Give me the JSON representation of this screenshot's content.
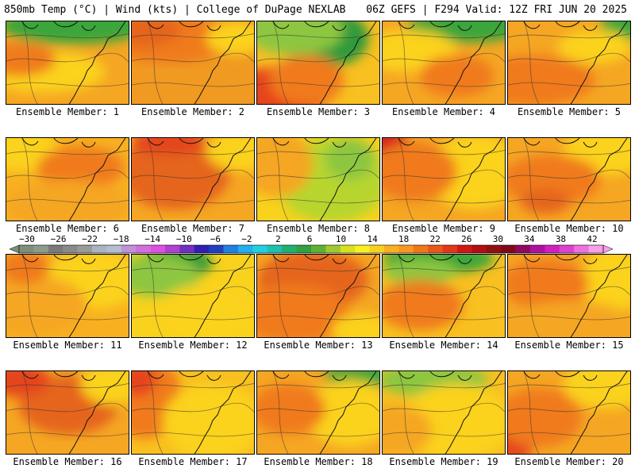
{
  "header": {
    "left": "850mb Temp (°C) | Wind (kts) | College of DuPage NEXLAB",
    "right": "06Z GEFS | F294 Valid: 12Z FRI JUN 20 2025"
  },
  "caption_prefix": "Ensemble Member:",
  "members": [
    {
      "label": "Ensemble Member: 1",
      "base": "#f5a623",
      "blobs": [
        [
          "#3aa63a",
          0.55,
          0.05,
          0.6,
          0.22
        ],
        [
          "#fbd21d",
          0.3,
          0.6,
          0.5,
          0.25
        ],
        [
          "#f07a1a",
          0.1,
          0.45,
          0.3,
          0.2
        ]
      ]
    },
    {
      "label": "Ensemble Member: 2",
      "base": "#f09a22",
      "blobs": [
        [
          "#f07a1a",
          0.3,
          0.2,
          0.5,
          0.3
        ],
        [
          "#fbd21d",
          0.85,
          0.2,
          0.25,
          0.2
        ],
        [
          "#e5651a",
          0.1,
          0.1,
          0.3,
          0.2
        ]
      ]
    },
    {
      "label": "Ensemble Member: 3",
      "base": "#f8c020",
      "blobs": [
        [
          "#2f9a3a",
          0.55,
          0.2,
          0.35,
          0.35
        ],
        [
          "#8dc63f",
          0.3,
          0.1,
          0.4,
          0.3
        ],
        [
          "#e5441a",
          0.15,
          0.85,
          0.45,
          0.3
        ],
        [
          "#f07a1a",
          0.4,
          0.7,
          0.3,
          0.3
        ]
      ]
    },
    {
      "label": "Ensemble Member: 4",
      "base": "#f5a623",
      "blobs": [
        [
          "#3aa63a",
          0.7,
          0.05,
          0.5,
          0.2
        ],
        [
          "#fbd21d",
          0.2,
          0.35,
          0.4,
          0.25
        ],
        [
          "#f07a1a",
          0.6,
          0.65,
          0.3,
          0.25
        ]
      ]
    },
    {
      "label": "Ensemble Member: 5",
      "base": "#f5a623",
      "blobs": [
        [
          "#3aa63a",
          0.95,
          0.05,
          0.2,
          0.2
        ],
        [
          "#f07a1a",
          0.2,
          0.7,
          0.5,
          0.3
        ],
        [
          "#fbd21d",
          0.7,
          0.3,
          0.3,
          0.2
        ]
      ]
    },
    {
      "label": "Ensemble Member: 6",
      "base": "#f8b021",
      "blobs": [
        [
          "#fbd21d",
          0.1,
          0.1,
          0.3,
          0.3
        ],
        [
          "#f07a1a",
          0.6,
          0.35,
          0.35,
          0.25
        ],
        [
          "#f5a623",
          0.5,
          0.8,
          0.5,
          0.3
        ]
      ]
    },
    {
      "label": "Ensemble Member: 7",
      "base": "#f5a623",
      "blobs": [
        [
          "#e5651a",
          0.35,
          0.4,
          0.45,
          0.45
        ],
        [
          "#e5441a",
          0.3,
          0.05,
          0.3,
          0.15
        ],
        [
          "#fbd21d",
          0.9,
          0.15,
          0.3,
          0.25
        ]
      ]
    },
    {
      "label": "Ensemble Member: 8",
      "base": "#f8d21d",
      "blobs": [
        [
          "#b7d52f",
          0.6,
          0.5,
          0.45,
          0.5
        ],
        [
          "#f5a623",
          0.15,
          0.3,
          0.3,
          0.4
        ],
        [
          "#8dc63f",
          0.75,
          0.25,
          0.2,
          0.25
        ]
      ]
    },
    {
      "label": "Ensemble Member: 9",
      "base": "#f5a623",
      "blobs": [
        [
          "#d41f1a",
          0.05,
          0.05,
          0.15,
          0.15
        ],
        [
          "#fbd21d",
          0.75,
          0.4,
          0.4,
          0.45
        ],
        [
          "#f07a1a",
          0.25,
          0.4,
          0.35,
          0.35
        ]
      ]
    },
    {
      "label": "Ensemble Member: 10",
      "base": "#f5a623",
      "blobs": [
        [
          "#fbd21d",
          0.8,
          0.15,
          0.35,
          0.3
        ],
        [
          "#f07a1a",
          0.35,
          0.5,
          0.4,
          0.3
        ],
        [
          "#e5651a",
          0.3,
          0.75,
          0.2,
          0.15
        ]
      ]
    },
    {
      "label": "Ensemble Member: 11",
      "base": "#f8b021",
      "blobs": [
        [
          "#fbd21d",
          0.7,
          0.3,
          0.4,
          0.35
        ],
        [
          "#f5a623",
          0.2,
          0.6,
          0.45,
          0.35
        ],
        [
          "#f07a1a",
          0.15,
          0.15,
          0.2,
          0.2
        ]
      ]
    },
    {
      "label": "Ensemble Member: 12",
      "base": "#f8d21d",
      "blobs": [
        [
          "#2f9a3a",
          0.35,
          0.1,
          0.3,
          0.2
        ],
        [
          "#8dc63f",
          0.2,
          0.25,
          0.35,
          0.25
        ],
        [
          "#fbd21d",
          0.6,
          0.7,
          0.4,
          0.35
        ]
      ]
    },
    {
      "label": "Ensemble Member: 13",
      "base": "#f5a623",
      "blobs": [
        [
          "#e5651a",
          0.45,
          0.3,
          0.45,
          0.35
        ],
        [
          "#f07a1a",
          0.3,
          0.7,
          0.45,
          0.35
        ],
        [
          "#fbd21d",
          0.85,
          0.9,
          0.25,
          0.2
        ]
      ]
    },
    {
      "label": "Ensemble Member: 14",
      "base": "#f8c020",
      "blobs": [
        [
          "#3aa63a",
          0.45,
          0.05,
          0.45,
          0.18
        ],
        [
          "#8dc63f",
          0.3,
          0.2,
          0.3,
          0.15
        ],
        [
          "#f07a1a",
          0.3,
          0.6,
          0.35,
          0.3
        ]
      ]
    },
    {
      "label": "Ensemble Member: 15",
      "base": "#f5a623",
      "blobs": [
        [
          "#fbd21d",
          0.85,
          0.3,
          0.25,
          0.4
        ],
        [
          "#f07a1a",
          0.3,
          0.35,
          0.35,
          0.3
        ],
        [
          "#f5a623",
          0.5,
          0.8,
          0.5,
          0.25
        ]
      ]
    },
    {
      "label": "Ensemble Member: 16",
      "base": "#f5a623",
      "blobs": [
        [
          "#e5651a",
          0.5,
          0.4,
          0.4,
          0.35
        ],
        [
          "#e5441a",
          0.1,
          0.1,
          0.25,
          0.2
        ],
        [
          "#fbd21d",
          0.85,
          0.15,
          0.25,
          0.25
        ]
      ]
    },
    {
      "label": "Ensemble Member: 17",
      "base": "#f8c020",
      "blobs": [
        [
          "#f07a1a",
          0.1,
          0.3,
          0.3,
          0.5
        ],
        [
          "#e5441a",
          0.05,
          0.1,
          0.15,
          0.2
        ],
        [
          "#fbd21d",
          0.65,
          0.6,
          0.4,
          0.45
        ]
      ]
    },
    {
      "label": "Ensemble Member: 18",
      "base": "#f5a623",
      "blobs": [
        [
          "#3aa63a",
          0.85,
          0.05,
          0.3,
          0.15
        ],
        [
          "#fbd21d",
          0.75,
          0.5,
          0.35,
          0.4
        ],
        [
          "#f07a1a",
          0.25,
          0.45,
          0.3,
          0.3
        ]
      ]
    },
    {
      "label": "Ensemble Member: 19",
      "base": "#f8c020",
      "blobs": [
        [
          "#8dc63f",
          0.4,
          0.1,
          0.45,
          0.2
        ],
        [
          "#fbd21d",
          0.6,
          0.6,
          0.45,
          0.45
        ],
        [
          "#f5a623",
          0.1,
          0.7,
          0.3,
          0.3
        ]
      ]
    },
    {
      "label": "Ensemble Member: 20",
      "base": "#f5a623",
      "blobs": [
        [
          "#e5441a",
          0.05,
          0.85,
          0.15,
          0.25
        ],
        [
          "#f07a1a",
          0.25,
          0.55,
          0.35,
          0.35
        ],
        [
          "#fbd21d",
          0.8,
          0.15,
          0.35,
          0.3
        ]
      ]
    }
  ],
  "colorbar": {
    "ticks": [
      "−30",
      "−26",
      "−22",
      "−18",
      "−14",
      "−10",
      "−6",
      "−2",
      "2",
      "6",
      "10",
      "14",
      "18",
      "22",
      "26",
      "30",
      "34",
      "38",
      "42"
    ],
    "colors": [
      "#7d8f7a",
      "#8c9c89",
      "#7a7a7a",
      "#8a8a8a",
      "#9a9a9a",
      "#aab4c0",
      "#b4bed0",
      "#c090d8",
      "#d070e0",
      "#e050e0",
      "#b040d0",
      "#7030c0",
      "#3020b0",
      "#2040c0",
      "#2080e0",
      "#20b0f0",
      "#20d0e0",
      "#20c0b0",
      "#20b070",
      "#30a040",
      "#60b030",
      "#a0c830",
      "#d8e020",
      "#f8f020",
      "#f8d020",
      "#f8b020",
      "#f89820",
      "#f07818",
      "#e85818",
      "#e03818",
      "#d01818",
      "#b01010",
      "#901010",
      "#800818",
      "#900860",
      "#b010a0",
      "#d020c0",
      "#e040d0",
      "#f070e0",
      "#f8a0e8"
    ]
  }
}
